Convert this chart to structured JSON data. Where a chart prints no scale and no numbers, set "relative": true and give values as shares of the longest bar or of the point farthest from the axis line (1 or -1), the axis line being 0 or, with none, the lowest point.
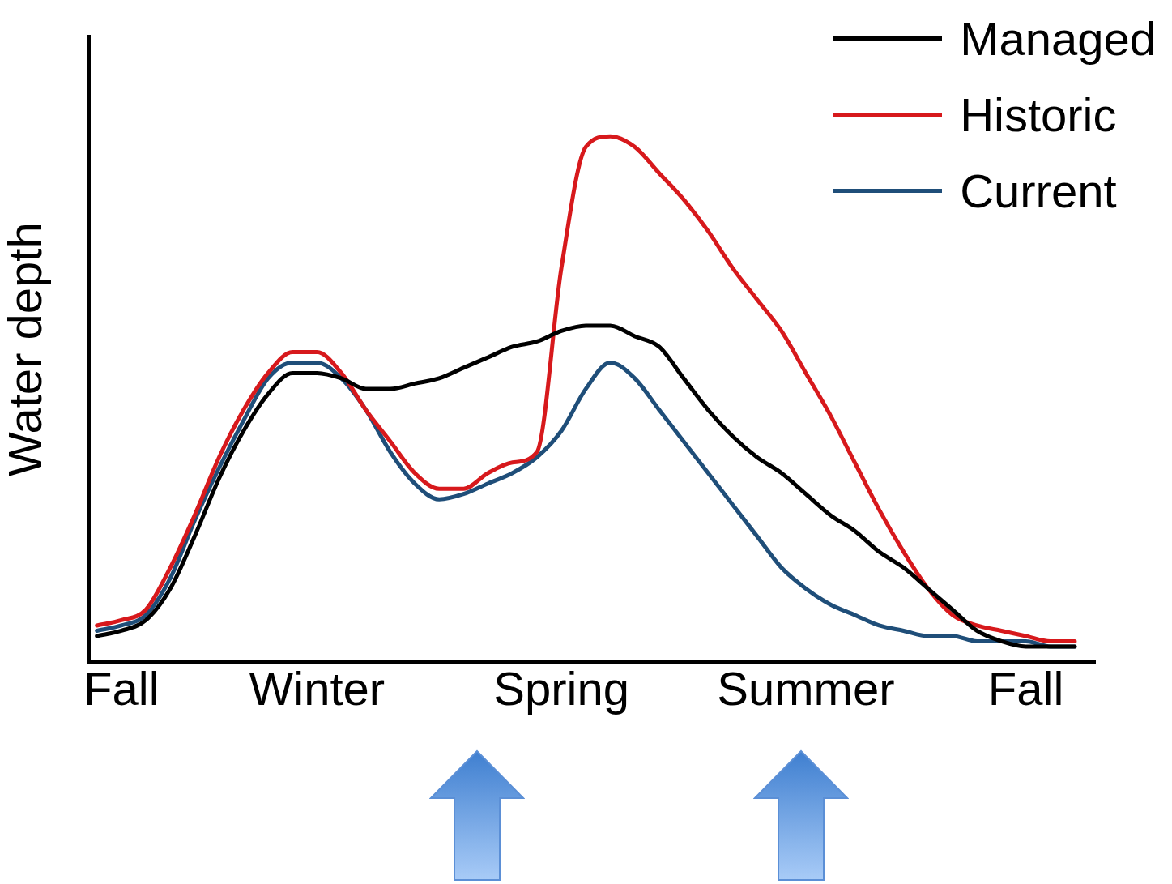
{
  "chart_data": {
    "type": "line",
    "relative": true,
    "ylabel": "Water depth",
    "legend": "top right",
    "marker": "none",
    "line_style": "solid",
    "grid": false,
    "categories": [
      null,
      "Fall",
      null,
      null,
      null,
      null,
      null,
      null,
      null,
      "Winter",
      null,
      null,
      null,
      null,
      null,
      null,
      null,
      null,
      null,
      "Spring",
      null,
      null,
      null,
      null,
      null,
      null,
      null,
      null,
      null,
      "Summer",
      null,
      null,
      null,
      null,
      null,
      null,
      null,
      null,
      "Fall",
      null,
      null
    ],
    "series": [
      {
        "name": "Managed",
        "color": "#000000",
        "values": [
          0.05,
          0.06,
          0.08,
          0.14,
          0.24,
          0.35,
          0.44,
          0.51,
          0.55,
          0.55,
          0.54,
          0.52,
          0.52,
          0.53,
          0.54,
          0.56,
          0.58,
          0.6,
          0.61,
          0.63,
          0.64,
          0.64,
          0.62,
          0.6,
          0.54,
          0.48,
          0.43,
          0.39,
          0.36,
          0.32,
          0.28,
          0.25,
          0.21,
          0.18,
          0.14,
          0.1,
          0.06,
          0.04,
          0.03,
          0.03,
          0.03
        ]
      },
      {
        "name": "Historic",
        "color": "#d7191c",
        "values": [
          0.07,
          0.08,
          0.1,
          0.18,
          0.28,
          0.39,
          0.48,
          0.55,
          0.59,
          0.59,
          0.55,
          0.48,
          0.42,
          0.36,
          0.33,
          0.33,
          0.36,
          0.38,
          0.4,
          0.75,
          0.98,
          1,
          0.98,
          0.93,
          0.88,
          0.82,
          0.75,
          0.69,
          0.63,
          0.55,
          0.47,
          0.38,
          0.29,
          0.21,
          0.14,
          0.09,
          0.07,
          0.06,
          0.05,
          0.04,
          0.04
        ]
      },
      {
        "name": "Current",
        "color": "#1f4e79",
        "values": [
          0.06,
          0.07,
          0.09,
          0.16,
          0.27,
          0.37,
          0.46,
          0.54,
          0.57,
          0.57,
          0.54,
          0.48,
          0.4,
          0.34,
          0.31,
          0.32,
          0.34,
          0.36,
          0.39,
          0.44,
          0.52,
          0.57,
          0.54,
          0.48,
          0.42,
          0.36,
          0.3,
          0.24,
          0.18,
          0.14,
          0.11,
          0.09,
          0.07,
          0.06,
          0.05,
          0.05,
          0.04,
          0.04,
          0.04,
          0.03,
          0.03
        ]
      }
    ]
  }
}
